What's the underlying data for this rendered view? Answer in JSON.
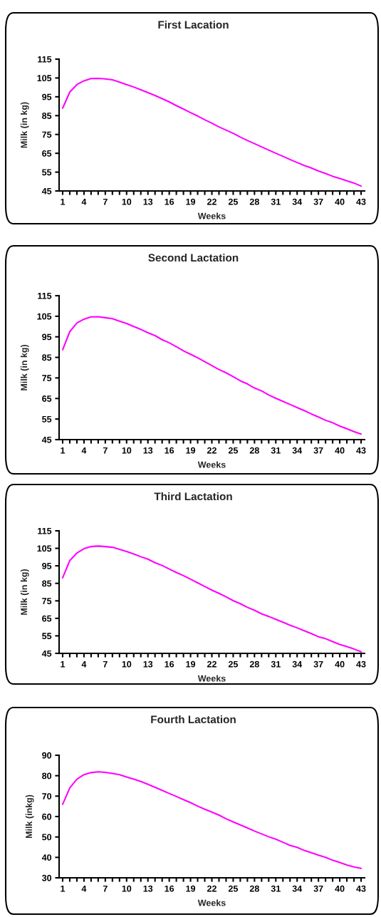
{
  "chart_data": [
    {
      "type": "line",
      "title": "First Lacation",
      "xlabel": "Weeks",
      "ylabel": "Milk (in kg)",
      "grid": false,
      "legend": false,
      "xlim": [
        0.5,
        43.5
      ],
      "xticks": [
        1,
        {
          "value": 2,
          "label": null
        },
        {
          "value": 3,
          "label": null
        },
        4,
        {
          "value": 5,
          "label": null
        },
        {
          "value": 6,
          "label": null
        },
        7,
        {
          "value": 8,
          "label": null
        },
        {
          "value": 9,
          "label": null
        },
        10,
        {
          "value": 11,
          "label": null
        },
        {
          "value": 12,
          "label": null
        },
        13,
        {
          "value": 14,
          "label": null
        },
        {
          "value": 15,
          "label": null
        },
        16,
        {
          "value": 17,
          "label": null
        },
        {
          "value": 18,
          "label": null
        },
        19,
        {
          "value": 20,
          "label": null
        },
        {
          "value": 21,
          "label": null
        },
        22,
        {
          "value": 23,
          "label": null
        },
        {
          "value": 24,
          "label": null
        },
        25,
        {
          "value": 26,
          "label": null
        },
        {
          "value": 27,
          "label": null
        },
        28,
        {
          "value": 29,
          "label": null
        },
        {
          "value": 30,
          "label": null
        },
        31,
        {
          "value": 32,
          "label": null
        },
        {
          "value": 33,
          "label": null
        },
        34,
        {
          "value": 35,
          "label": null
        },
        {
          "value": 36,
          "label": null
        },
        37,
        {
          "value": 38,
          "label": null
        },
        {
          "value": 39,
          "label": null
        },
        40,
        {
          "value": 41,
          "label": null
        },
        {
          "value": 42,
          "label": null
        },
        43
      ],
      "ylim": [
        45,
        115
      ],
      "yticks": [
        45,
        55,
        65,
        75,
        85,
        95,
        105,
        115
      ],
      "x": [
        1,
        2,
        3,
        4,
        5,
        6,
        7,
        8,
        9,
        10,
        11,
        12,
        13,
        14,
        15,
        16,
        17,
        18,
        19,
        20,
        21,
        22,
        23,
        24,
        25,
        26,
        27,
        28,
        29,
        30,
        31,
        32,
        33,
        34,
        35,
        36,
        37,
        38,
        39,
        40,
        41,
        42,
        43
      ],
      "series": [
        {
          "color": "#ff00ff",
          "values": [
            89,
            97.5,
            101.5,
            103.5,
            104.7,
            104.8,
            104.5,
            104,
            102.8,
            101.5,
            100.2,
            98.7,
            97.2,
            95.7,
            94,
            92.3,
            90.3,
            88.5,
            86.6,
            84.8,
            82.8,
            81,
            79,
            77.3,
            75.6,
            73.6,
            71.8,
            70.1,
            68.4,
            66.7,
            65,
            63.4,
            61.7,
            60.1,
            58.5,
            57.2,
            55.6,
            54.3,
            52.8,
            51.6,
            50.4,
            49.2,
            47.6
          ]
        }
      ]
    },
    {
      "type": "line",
      "title": "Second Lactation",
      "xlabel": "Weeks",
      "ylabel": "Milk (in kg)",
      "grid": false,
      "legend": false,
      "xlim": [
        0.5,
        43.5
      ],
      "xticks": [
        1,
        {
          "value": 2,
          "label": null
        },
        {
          "value": 3,
          "label": null
        },
        4,
        {
          "value": 5,
          "label": null
        },
        {
          "value": 6,
          "label": null
        },
        7,
        {
          "value": 8,
          "label": null
        },
        {
          "value": 9,
          "label": null
        },
        10,
        {
          "value": 11,
          "label": null
        },
        {
          "value": 12,
          "label": null
        },
        13,
        {
          "value": 14,
          "label": null
        },
        {
          "value": 15,
          "label": null
        },
        16,
        {
          "value": 17,
          "label": null
        },
        {
          "value": 18,
          "label": null
        },
        19,
        {
          "value": 20,
          "label": null
        },
        {
          "value": 21,
          "label": null
        },
        22,
        {
          "value": 23,
          "label": null
        },
        {
          "value": 24,
          "label": null
        },
        25,
        {
          "value": 26,
          "label": null
        },
        {
          "value": 27,
          "label": null
        },
        28,
        {
          "value": 29,
          "label": null
        },
        {
          "value": 30,
          "label": null
        },
        31,
        {
          "value": 32,
          "label": null
        },
        {
          "value": 33,
          "label": null
        },
        34,
        {
          "value": 35,
          "label": null
        },
        {
          "value": 36,
          "label": null
        },
        37,
        {
          "value": 38,
          "label": null
        },
        {
          "value": 39,
          "label": null
        },
        40,
        {
          "value": 41,
          "label": null
        },
        {
          "value": 42,
          "label": null
        },
        43
      ],
      "ylim": [
        45,
        115
      ],
      "yticks": [
        45,
        55,
        65,
        75,
        85,
        95,
        105,
        115
      ],
      "x": [
        1,
        2,
        3,
        4,
        5,
        6,
        7,
        8,
        9,
        10,
        11,
        12,
        13,
        14,
        15,
        16,
        17,
        18,
        19,
        20,
        21,
        22,
        23,
        24,
        25,
        26,
        27,
        28,
        29,
        30,
        31,
        32,
        33,
        34,
        35,
        36,
        37,
        38,
        39,
        40,
        41,
        42,
        43
      ],
      "series": [
        {
          "color": "#ff00ff",
          "values": [
            88.7,
            97.5,
            101.7,
            103.6,
            104.7,
            104.8,
            104.3,
            103.8,
            102.6,
            101.5,
            100,
            98.6,
            97,
            95.6,
            93.6,
            92.1,
            90.2,
            88.2,
            86.5,
            84.8,
            82.9,
            81,
            79.1,
            77.5,
            75.6,
            73.6,
            72.1,
            70.1,
            68.7,
            66.7,
            65.1,
            63.6,
            62.1,
            60.6,
            59.1,
            57.5,
            56,
            54.4,
            53.2,
            51.6,
            50.3,
            48.9,
            47.7
          ]
        }
      ]
    },
    {
      "type": "line",
      "title": "Third Lactation",
      "xlabel": "Weeks",
      "ylabel": "Milk (in kg)",
      "grid": false,
      "legend": false,
      "xlim": [
        0.5,
        43.5
      ],
      "xticks": [
        1,
        {
          "value": 2,
          "label": null
        },
        {
          "value": 3,
          "label": null
        },
        4,
        {
          "value": 5,
          "label": null
        },
        {
          "value": 6,
          "label": null
        },
        7,
        {
          "value": 8,
          "label": null
        },
        {
          "value": 9,
          "label": null
        },
        10,
        {
          "value": 11,
          "label": null
        },
        {
          "value": 12,
          "label": null
        },
        13,
        {
          "value": 14,
          "label": null
        },
        {
          "value": 15,
          "label": null
        },
        16,
        {
          "value": 17,
          "label": null
        },
        {
          "value": 18,
          "label": null
        },
        19,
        {
          "value": 20,
          "label": null
        },
        {
          "value": 21,
          "label": null
        },
        22,
        {
          "value": 23,
          "label": null
        },
        {
          "value": 24,
          "label": null
        },
        25,
        {
          "value": 26,
          "label": null
        },
        {
          "value": 27,
          "label": null
        },
        28,
        {
          "value": 29,
          "label": null
        },
        {
          "value": 30,
          "label": null
        },
        31,
        {
          "value": 32,
          "label": null
        },
        {
          "value": 33,
          "label": null
        },
        34,
        {
          "value": 35,
          "label": null
        },
        {
          "value": 36,
          "label": null
        },
        37,
        {
          "value": 38,
          "label": null
        },
        {
          "value": 39,
          "label": null
        },
        40,
        {
          "value": 41,
          "label": null
        },
        {
          "value": 42,
          "label": null
        },
        43
      ],
      "ylim": [
        45,
        115
      ],
      "yticks": [
        45,
        55,
        65,
        75,
        85,
        95,
        105,
        115
      ],
      "x": [
        1,
        2,
        3,
        4,
        5,
        6,
        7,
        8,
        9,
        10,
        11,
        12,
        13,
        14,
        15,
        16,
        17,
        18,
        19,
        20,
        21,
        22,
        23,
        24,
        25,
        26,
        27,
        28,
        29,
        30,
        31,
        32,
        33,
        34,
        35,
        36,
        37,
        38,
        39,
        40,
        41,
        42,
        43
      ],
      "series": [
        {
          "color": "#ff00ff",
          "values": [
            88.2,
            98,
            102.3,
            104.8,
            106,
            106.3,
            106,
            105.6,
            104.4,
            103.2,
            101.8,
            100.2,
            98.8,
            96.8,
            95.2,
            93.2,
            91.2,
            89.4,
            87.4,
            85.3,
            83.2,
            81.1,
            79.3,
            77.3,
            75.1,
            73.4,
            71.3,
            69.6,
            67.6,
            66.1,
            64.4,
            62.8,
            61.1,
            59.6,
            57.9,
            56.3,
            54.5,
            53.4,
            51.7,
            50.1,
            48.9,
            47.5,
            45.9
          ]
        }
      ]
    },
    {
      "type": "line",
      "title": "Fourth Lactation",
      "xlabel": "Weeks",
      "ylabel": "Milk (inkg)",
      "grid": false,
      "legend": false,
      "xlim": [
        0.5,
        43.5
      ],
      "xticks": [
        1,
        {
          "value": 2,
          "label": null
        },
        {
          "value": 3,
          "label": null
        },
        4,
        {
          "value": 5,
          "label": null
        },
        {
          "value": 6,
          "label": null
        },
        7,
        {
          "value": 8,
          "label": null
        },
        {
          "value": 9,
          "label": null
        },
        10,
        {
          "value": 11,
          "label": null
        },
        {
          "value": 12,
          "label": null
        },
        13,
        {
          "value": 14,
          "label": null
        },
        {
          "value": 15,
          "label": null
        },
        16,
        {
          "value": 17,
          "label": null
        },
        {
          "value": 18,
          "label": null
        },
        19,
        {
          "value": 20,
          "label": null
        },
        {
          "value": 21,
          "label": null
        },
        22,
        {
          "value": 23,
          "label": null
        },
        {
          "value": 24,
          "label": null
        },
        25,
        {
          "value": 26,
          "label": null
        },
        {
          "value": 27,
          "label": null
        },
        28,
        {
          "value": 29,
          "label": null
        },
        {
          "value": 30,
          "label": null
        },
        31,
        {
          "value": 32,
          "label": null
        },
        {
          "value": 33,
          "label": null
        },
        34,
        {
          "value": 35,
          "label": null
        },
        {
          "value": 36,
          "label": null
        },
        37,
        {
          "value": 38,
          "label": null
        },
        {
          "value": 39,
          "label": null
        },
        40,
        {
          "value": 41,
          "label": null
        },
        {
          "value": 42,
          "label": null
        },
        43
      ],
      "ylim": [
        30,
        90
      ],
      "yticks": [
        30,
        40,
        50,
        60,
        70,
        80,
        90
      ],
      "x": [
        1,
        2,
        3,
        4,
        5,
        6,
        7,
        8,
        9,
        10,
        11,
        12,
        13,
        14,
        15,
        16,
        17,
        18,
        19,
        20,
        21,
        22,
        23,
        24,
        25,
        26,
        27,
        28,
        29,
        30,
        31,
        32,
        33,
        34,
        35,
        36,
        37,
        38,
        39,
        40,
        41,
        42,
        43
      ],
      "series": [
        {
          "color": "#ff00ff",
          "values": [
            66,
            74,
            78.3,
            80.5,
            81.5,
            81.9,
            81.6,
            81.1,
            80.5,
            79.4,
            78.3,
            77.2,
            75.8,
            74.3,
            72.8,
            71.3,
            69.8,
            68.3,
            66.8,
            65.1,
            63.6,
            62.2,
            60.7,
            58.9,
            57.4,
            55.9,
            54.4,
            52.9,
            51.5,
            50.1,
            48.9,
            47.4,
            45.9,
            44.9,
            43.4,
            42.3,
            41.1,
            40,
            38.6,
            37.5,
            36.3,
            35.3,
            34.6
          ]
        }
      ]
    }
  ]
}
